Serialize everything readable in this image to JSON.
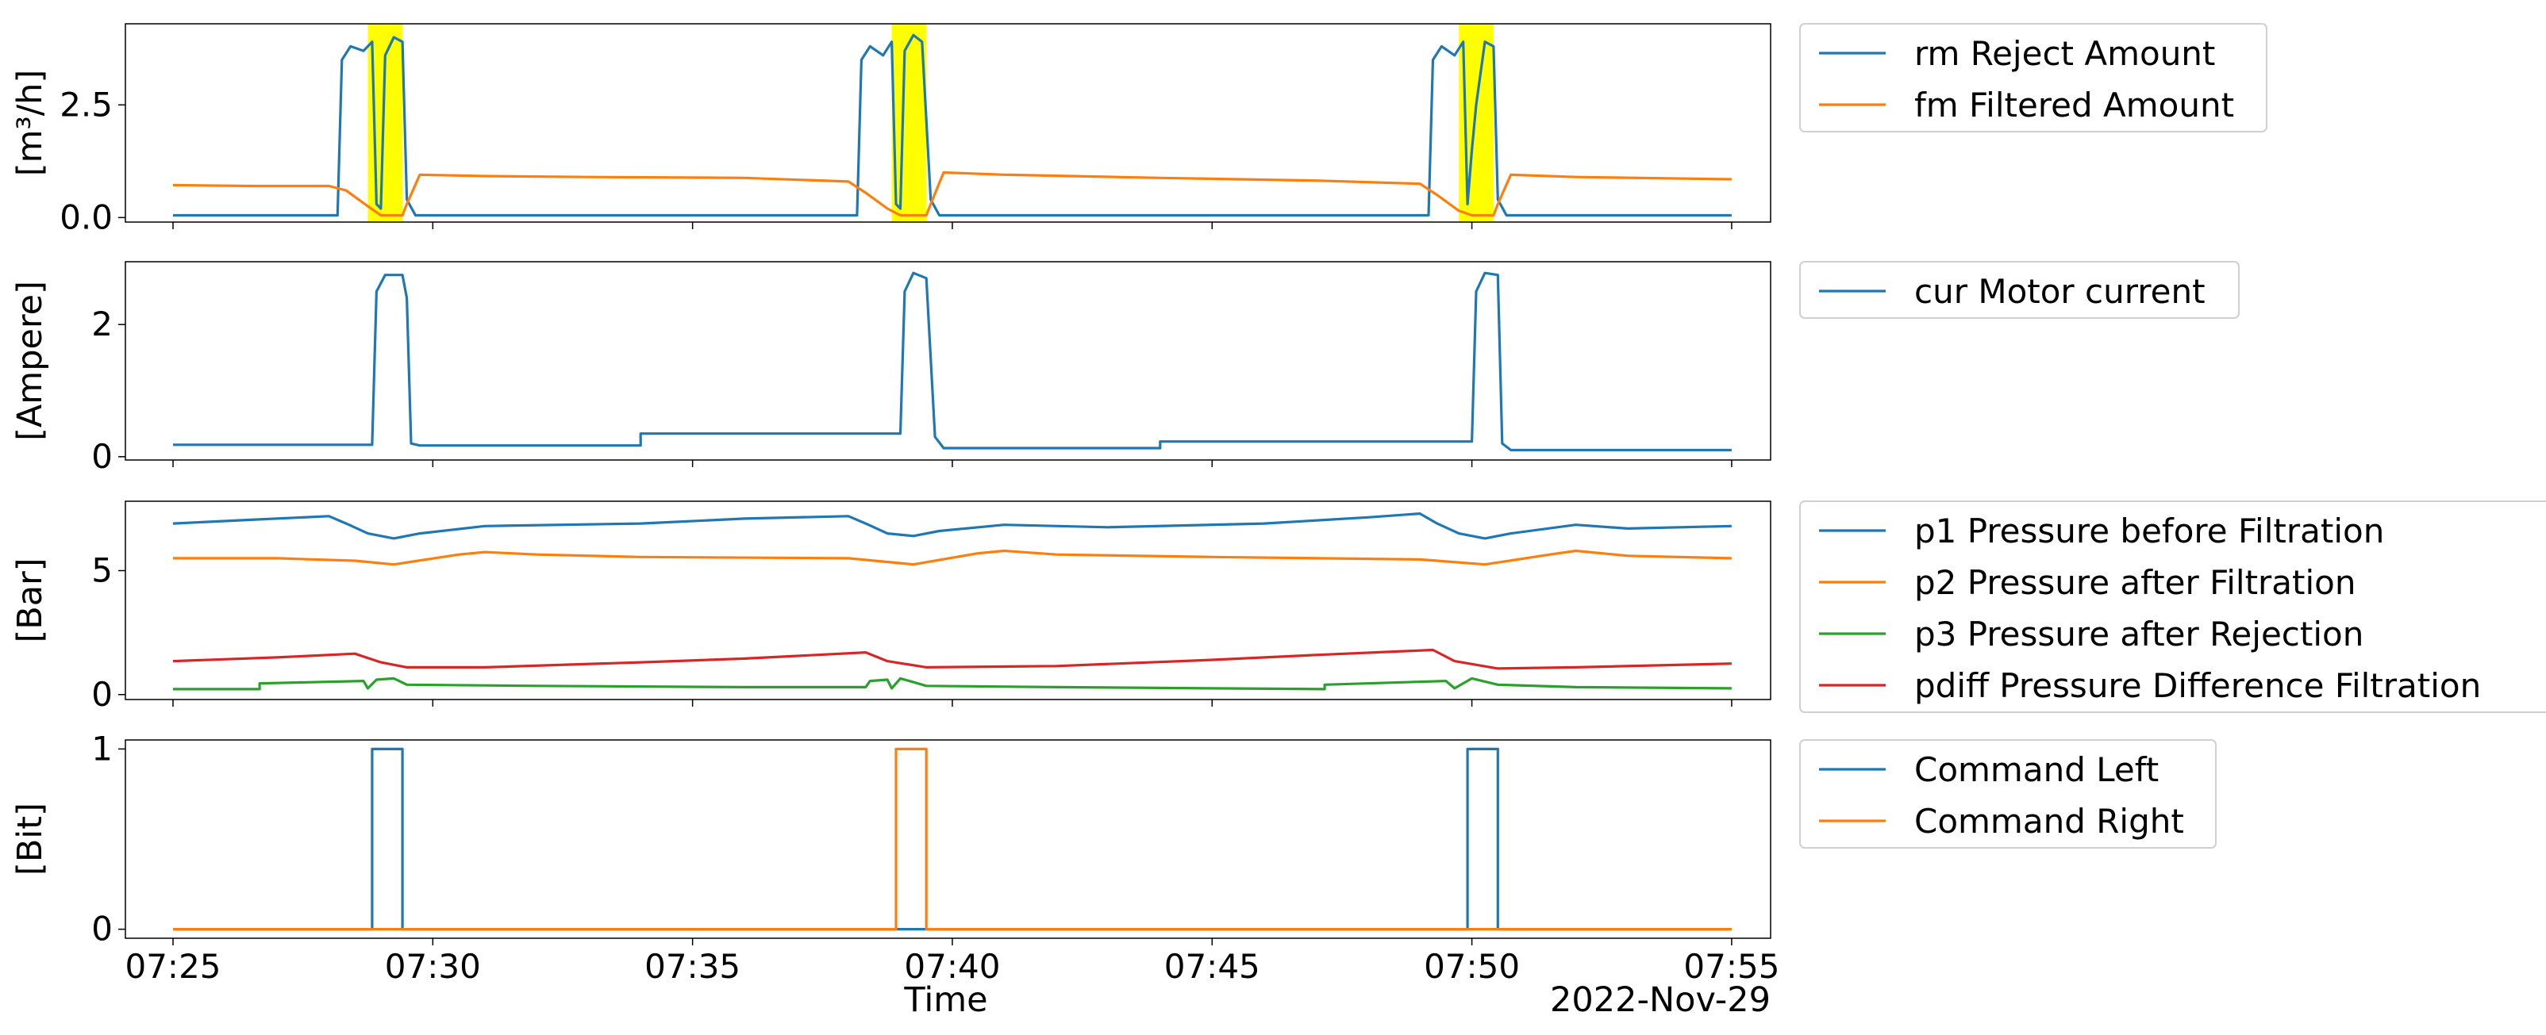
{
  "colors": {
    "blue": "#1f77b4",
    "orange": "#ff7f0e",
    "green": "#2ca02c",
    "red": "#d62728",
    "highlight": "#ffff00"
  },
  "chart_data": [
    {
      "type": "line",
      "ylabel": "[m³/h]",
      "ylim": [
        -0.1,
        4.3
      ],
      "yticks": [
        0.0,
        2.5
      ],
      "ytick_labels": [
        "0.0",
        "2.5"
      ],
      "legend_position": "outside-right",
      "highlights": [
        [
          "07:28:45",
          "07:29:25"
        ],
        [
          "07:38:50",
          "07:39:30"
        ],
        [
          "07:49:45",
          "07:50:25"
        ]
      ],
      "series": [
        {
          "name": "rm Reject Amount",
          "color": "blue",
          "points": [
            [
              "07:25:00",
              0.05
            ],
            [
              "07:28:10",
              0.05
            ],
            [
              "07:28:15",
              3.5
            ],
            [
              "07:28:25",
              3.8
            ],
            [
              "07:28:40",
              3.7
            ],
            [
              "07:28:50",
              3.9
            ],
            [
              "07:28:55",
              0.3
            ],
            [
              "07:29:00",
              0.2
            ],
            [
              "07:29:05",
              3.6
            ],
            [
              "07:29:15",
              4.0
            ],
            [
              "07:29:25",
              3.9
            ],
            [
              "07:29:30",
              0.4
            ],
            [
              "07:29:40",
              0.05
            ],
            [
              "07:38:10",
              0.05
            ],
            [
              "07:38:15",
              3.5
            ],
            [
              "07:38:25",
              3.8
            ],
            [
              "07:38:40",
              3.6
            ],
            [
              "07:38:50",
              3.9
            ],
            [
              "07:38:55",
              0.3
            ],
            [
              "07:39:00",
              0.2
            ],
            [
              "07:39:05",
              3.7
            ],
            [
              "07:39:15",
              4.05
            ],
            [
              "07:39:25",
              3.9
            ],
            [
              "07:39:35",
              0.4
            ],
            [
              "07:39:45",
              0.05
            ],
            [
              "07:49:10",
              0.05
            ],
            [
              "07:49:15",
              3.5
            ],
            [
              "07:49:25",
              3.8
            ],
            [
              "07:49:40",
              3.6
            ],
            [
              "07:49:50",
              3.9
            ],
            [
              "07:49:55",
              0.3
            ],
            [
              "07:50:00",
              1.5
            ],
            [
              "07:50:05",
              2.5
            ],
            [
              "07:50:15",
              3.9
            ],
            [
              "07:50:25",
              3.8
            ],
            [
              "07:50:30",
              0.4
            ],
            [
              "07:50:40",
              0.05
            ],
            [
              "07:55:00",
              0.05
            ]
          ]
        },
        {
          "name": "fm Filtered Amount",
          "color": "orange",
          "points": [
            [
              "07:25:00",
              0.72
            ],
            [
              "07:26:30",
              0.7
            ],
            [
              "07:28:00",
              0.7
            ],
            [
              "07:28:20",
              0.6
            ],
            [
              "07:28:45",
              0.25
            ],
            [
              "07:29:00",
              0.05
            ],
            [
              "07:29:25",
              0.05
            ],
            [
              "07:29:30",
              0.3
            ],
            [
              "07:29:45",
              0.95
            ],
            [
              "07:31:00",
              0.92
            ],
            [
              "07:33:00",
              0.9
            ],
            [
              "07:36:00",
              0.88
            ],
            [
              "07:38:00",
              0.8
            ],
            [
              "07:38:20",
              0.55
            ],
            [
              "07:38:45",
              0.2
            ],
            [
              "07:39:00",
              0.05
            ],
            [
              "07:39:30",
              0.05
            ],
            [
              "07:39:35",
              0.3
            ],
            [
              "07:39:50",
              1.0
            ],
            [
              "07:41:00",
              0.95
            ],
            [
              "07:44:00",
              0.88
            ],
            [
              "07:47:00",
              0.82
            ],
            [
              "07:49:00",
              0.75
            ],
            [
              "07:49:20",
              0.5
            ],
            [
              "07:49:45",
              0.15
            ],
            [
              "07:50:00",
              0.05
            ],
            [
              "07:50:25",
              0.05
            ],
            [
              "07:50:30",
              0.3
            ],
            [
              "07:50:45",
              0.95
            ],
            [
              "07:52:00",
              0.9
            ],
            [
              "07:55:00",
              0.85
            ]
          ]
        }
      ]
    },
    {
      "type": "line",
      "ylabel": "[Ampere]",
      "ylim": [
        -0.05,
        2.95
      ],
      "yticks": [
        0,
        2
      ],
      "ytick_labels": [
        "0",
        "2"
      ],
      "legend_position": "outside-right",
      "series": [
        {
          "name": "cur Motor current",
          "color": "blue",
          "points": [
            [
              "07:25:00",
              0.18
            ],
            [
              "07:28:50",
              0.18
            ],
            [
              "07:28:55",
              2.5
            ],
            [
              "07:29:05",
              2.75
            ],
            [
              "07:29:25",
              2.75
            ],
            [
              "07:29:30",
              2.4
            ],
            [
              "07:29:35",
              0.2
            ],
            [
              "07:29:45",
              0.17
            ],
            [
              "07:34:00",
              0.17
            ],
            [
              "07:34:00",
              0.35
            ],
            [
              "07:39:00",
              0.35
            ],
            [
              "07:39:05",
              2.5
            ],
            [
              "07:39:15",
              2.78
            ],
            [
              "07:39:30",
              2.7
            ],
            [
              "07:39:40",
              0.3
            ],
            [
              "07:39:50",
              0.13
            ],
            [
              "07:44:00",
              0.13
            ],
            [
              "07:44:00",
              0.23
            ],
            [
              "07:50:00",
              0.23
            ],
            [
              "07:50:05",
              2.5
            ],
            [
              "07:50:15",
              2.78
            ],
            [
              "07:50:30",
              2.75
            ],
            [
              "07:50:35",
              0.2
            ],
            [
              "07:50:45",
              0.1
            ],
            [
              "07:55:00",
              0.1
            ]
          ]
        }
      ]
    },
    {
      "type": "line",
      "ylabel": "[Bar]",
      "ylim": [
        -0.2,
        7.8
      ],
      "yticks": [
        0,
        5
      ],
      "ytick_labels": [
        "0",
        "5"
      ],
      "legend_position": "outside-right",
      "series": [
        {
          "name": "p1 Pressure before Filtration",
          "color": "blue",
          "points": [
            [
              "07:25:00",
              6.9
            ],
            [
              "07:26:30",
              7.05
            ],
            [
              "07:28:00",
              7.2
            ],
            [
              "07:28:20",
              6.9
            ],
            [
              "07:28:45",
              6.5
            ],
            [
              "07:29:15",
              6.3
            ],
            [
              "07:29:45",
              6.5
            ],
            [
              "07:31:00",
              6.8
            ],
            [
              "07:34:00",
              6.9
            ],
            [
              "07:36:00",
              7.1
            ],
            [
              "07:38:00",
              7.2
            ],
            [
              "07:38:20",
              6.9
            ],
            [
              "07:38:45",
              6.5
            ],
            [
              "07:39:15",
              6.4
            ],
            [
              "07:39:45",
              6.6
            ],
            [
              "07:41:00",
              6.85
            ],
            [
              "07:43:00",
              6.75
            ],
            [
              "07:46:00",
              6.9
            ],
            [
              "07:48:00",
              7.15
            ],
            [
              "07:49:00",
              7.3
            ],
            [
              "07:49:20",
              6.9
            ],
            [
              "07:49:45",
              6.5
            ],
            [
              "07:50:15",
              6.3
            ],
            [
              "07:50:45",
              6.5
            ],
            [
              "07:52:00",
              6.85
            ],
            [
              "07:53:00",
              6.7
            ],
            [
              "07:55:00",
              6.8
            ]
          ]
        },
        {
          "name": "p2 Pressure after Filtration",
          "color": "orange",
          "points": [
            [
              "07:25:00",
              5.5
            ],
            [
              "07:27:00",
              5.5
            ],
            [
              "07:28:30",
              5.4
            ],
            [
              "07:29:15",
              5.25
            ],
            [
              "07:30:30",
              5.65
            ],
            [
              "07:31:00",
              5.75
            ],
            [
              "07:32:00",
              5.65
            ],
            [
              "07:34:00",
              5.55
            ],
            [
              "07:38:00",
              5.5
            ],
            [
              "07:39:15",
              5.25
            ],
            [
              "07:40:30",
              5.7
            ],
            [
              "07:41:00",
              5.8
            ],
            [
              "07:42:00",
              5.65
            ],
            [
              "07:45:00",
              5.55
            ],
            [
              "07:49:00",
              5.45
            ],
            [
              "07:50:15",
              5.25
            ],
            [
              "07:51:30",
              5.65
            ],
            [
              "07:52:00",
              5.8
            ],
            [
              "07:53:00",
              5.6
            ],
            [
              "07:55:00",
              5.5
            ]
          ]
        },
        {
          "name": "p3 Pressure after Rejection",
          "color": "green",
          "points": [
            [
              "07:25:00",
              0.22
            ],
            [
              "07:26:40",
              0.22
            ],
            [
              "07:26:40",
              0.45
            ],
            [
              "07:28:40",
              0.55
            ],
            [
              "07:28:45",
              0.25
            ],
            [
              "07:28:55",
              0.6
            ],
            [
              "07:29:15",
              0.65
            ],
            [
              "07:29:30",
              0.4
            ],
            [
              "07:32:00",
              0.35
            ],
            [
              "07:36:00",
              0.3
            ],
            [
              "07:38:20",
              0.3
            ],
            [
              "07:38:25",
              0.55
            ],
            [
              "07:38:45",
              0.6
            ],
            [
              "07:38:50",
              0.25
            ],
            [
              "07:39:00",
              0.65
            ],
            [
              "07:39:30",
              0.35
            ],
            [
              "07:42:00",
              0.3
            ],
            [
              "07:45:00",
              0.25
            ],
            [
              "07:47:10",
              0.22
            ],
            [
              "07:47:10",
              0.4
            ],
            [
              "07:49:30",
              0.55
            ],
            [
              "07:49:40",
              0.25
            ],
            [
              "07:50:00",
              0.65
            ],
            [
              "07:50:30",
              0.4
            ],
            [
              "07:52:00",
              0.3
            ],
            [
              "07:55:00",
              0.25
            ]
          ]
        },
        {
          "name": "pdiff Pressure Difference Filtration",
          "color": "red",
          "points": [
            [
              "07:25:00",
              1.35
            ],
            [
              "07:27:00",
              1.5
            ],
            [
              "07:28:30",
              1.65
            ],
            [
              "07:29:00",
              1.3
            ],
            [
              "07:29:30",
              1.1
            ],
            [
              "07:31:00",
              1.1
            ],
            [
              "07:34:00",
              1.3
            ],
            [
              "07:36:00",
              1.45
            ],
            [
              "07:38:20",
              1.7
            ],
            [
              "07:38:45",
              1.35
            ],
            [
              "07:39:30",
              1.1
            ],
            [
              "07:42:00",
              1.15
            ],
            [
              "07:45:00",
              1.4
            ],
            [
              "07:47:00",
              1.6
            ],
            [
              "07:49:15",
              1.8
            ],
            [
              "07:49:40",
              1.35
            ],
            [
              "07:50:30",
              1.05
            ],
            [
              "07:52:00",
              1.1
            ],
            [
              "07:55:00",
              1.25
            ]
          ]
        }
      ]
    },
    {
      "type": "line",
      "ylabel": "[Bit]",
      "ylim": [
        -0.05,
        1.05
      ],
      "yticks": [
        0,
        1
      ],
      "ytick_labels": [
        "0",
        "1"
      ],
      "legend_position": "outside-right",
      "xlabel": "Time",
      "xlim": [
        "07:24:05",
        "07:55:45"
      ],
      "xticks": [
        "07:25:00",
        "07:30:00",
        "07:35:00",
        "07:40:00",
        "07:45:00",
        "07:50:00",
        "07:55:00"
      ],
      "xtick_labels": [
        "07:25",
        "07:30",
        "07:35",
        "07:40",
        "07:45",
        "07:50",
        "07:55"
      ],
      "xaxis_date": "2022-Nov-29",
      "series": [
        {
          "name": "Command Left",
          "color": "blue",
          "points": [
            [
              "07:25:00",
              0
            ],
            [
              "07:28:50",
              0
            ],
            [
              "07:28:50",
              1
            ],
            [
              "07:29:25",
              1
            ],
            [
              "07:29:25",
              0
            ],
            [
              "07:49:55",
              0
            ],
            [
              "07:49:55",
              1
            ],
            [
              "07:50:30",
              1
            ],
            [
              "07:50:30",
              0
            ],
            [
              "07:55:00",
              0
            ]
          ]
        },
        {
          "name": "Command Right",
          "color": "orange",
          "points": [
            [
              "07:25:00",
              0
            ],
            [
              "07:38:55",
              0
            ],
            [
              "07:38:55",
              1
            ],
            [
              "07:39:30",
              1
            ],
            [
              "07:39:30",
              0
            ],
            [
              "07:55:00",
              0
            ]
          ]
        }
      ]
    }
  ]
}
